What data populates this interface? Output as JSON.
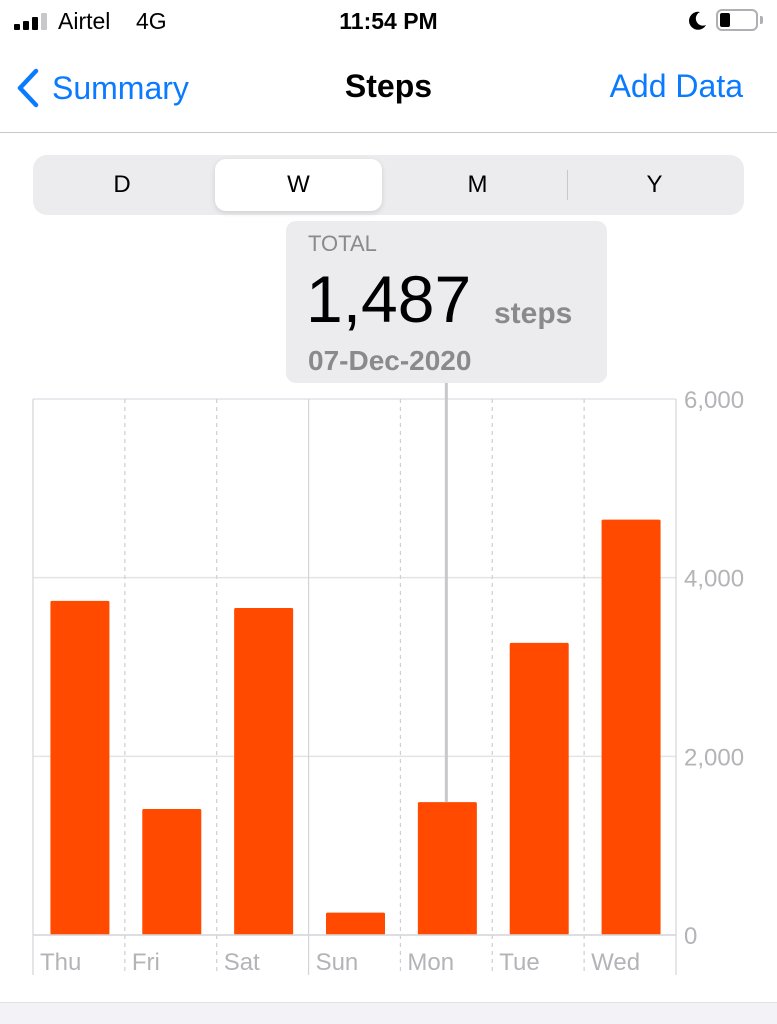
{
  "status_bar": {
    "carrier": "Airtel",
    "network": "4G",
    "time": "11:54 PM",
    "signal_bars": 3,
    "signal_bars_total": 4,
    "battery_level": 0.3,
    "icons": [
      "signal-icon",
      "moon-icon",
      "battery-icon"
    ]
  },
  "nav": {
    "back_label": "Summary",
    "title": "Steps",
    "action_label": "Add Data",
    "accent_color": "#0a7aff"
  },
  "segments": {
    "items": [
      "D",
      "W",
      "M",
      "Y"
    ],
    "selected": "W"
  },
  "tooltip": {
    "label": "TOTAL",
    "value": "1,487",
    "unit": "steps",
    "date": "07-Dec-2020"
  },
  "chart_data": {
    "type": "bar",
    "categories": [
      "Thu",
      "Fri",
      "Sat",
      "Sun",
      "Mon",
      "Tue",
      "Wed"
    ],
    "values": [
      3740,
      1410,
      3660,
      250,
      1487,
      3270,
      4650
    ],
    "ylim": [
      0,
      6000
    ],
    "yticks": [
      0,
      2000,
      4000,
      6000
    ],
    "ytick_labels": [
      "0",
      "2,000",
      "4,000",
      "6,000"
    ],
    "y_axis_position": "right",
    "highlighted_category": "Mon",
    "bar_color": "#ff4a00",
    "grid": true
  }
}
